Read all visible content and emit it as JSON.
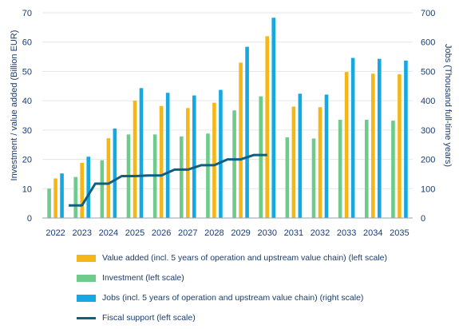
{
  "colors": {
    "value_added": "#F5B617",
    "investment": "#6FCB8C",
    "jobs": "#16A9E1",
    "fiscal": "#0E5F82",
    "axis_text": "#1A3B6E",
    "grid": "#E3E6EA"
  },
  "chart_data": {
    "type": "bar",
    "categories": [
      "2022",
      "2023",
      "2024",
      "2025",
      "2026",
      "2027",
      "2028",
      "2029",
      "2030",
      "2031",
      "2032",
      "2033",
      "2034",
      "2035"
    ],
    "ylabel": "Investment / value added (Billion EUR)",
    "ylabel_right": "Jobs (Thousand full-time years)",
    "ylim": [
      0,
      70
    ],
    "ylim_right": [
      0,
      700
    ],
    "yticks": [
      "0",
      "10",
      "20",
      "30",
      "40",
      "50",
      "60",
      "70"
    ],
    "yticks_right": [
      "0",
      "100",
      "200",
      "300",
      "400",
      "500",
      "600",
      "700"
    ],
    "grid": true,
    "legend_position": "bottom",
    "series": [
      {
        "key": "investment",
        "name": "Investment (left scale)",
        "axis": "left",
        "values": [
          10,
          14,
          19.7,
          28.5,
          28.5,
          27.8,
          28.8,
          36.7,
          41.5,
          27.5,
          27.1,
          33.5,
          33.5,
          33.2
        ]
      },
      {
        "key": "value_added",
        "name": "Value added (incl. 5 years of operation and upstream value chain) (left scale)",
        "axis": "left",
        "values": [
          13.5,
          18.8,
          27.2,
          40,
          38.2,
          37.5,
          39.3,
          53,
          62,
          38,
          37.8,
          49.8,
          49.2,
          49
        ]
      },
      {
        "key": "jobs",
        "name": "Jobs (incl. 5 years of operation and upstream value chain) (right scale)",
        "axis": "right",
        "values": [
          152,
          209,
          305,
          443,
          427,
          418,
          437,
          584,
          683,
          424,
          421,
          546,
          543,
          537
        ]
      },
      {
        "key": "fiscal",
        "name": "Fiscal support (left scale)",
        "type": "line",
        "axis": "left",
        "x": [
          "2022.5",
          "2023",
          "2023.5",
          "2024",
          "2024.5",
          "2025",
          "2025.5",
          "2026",
          "2026.5",
          "2027",
          "2027.5",
          "2028",
          "2028.5",
          "2029",
          "2029.5",
          "2030"
        ],
        "values": [
          4.3,
          4.3,
          11.7,
          11.7,
          14.3,
          14.3,
          14.5,
          14.5,
          16.5,
          16.5,
          18,
          18,
          20,
          20,
          21.5,
          21.5
        ]
      }
    ],
    "legend_order": [
      "value_added",
      "investment",
      "jobs",
      "fiscal"
    ]
  }
}
